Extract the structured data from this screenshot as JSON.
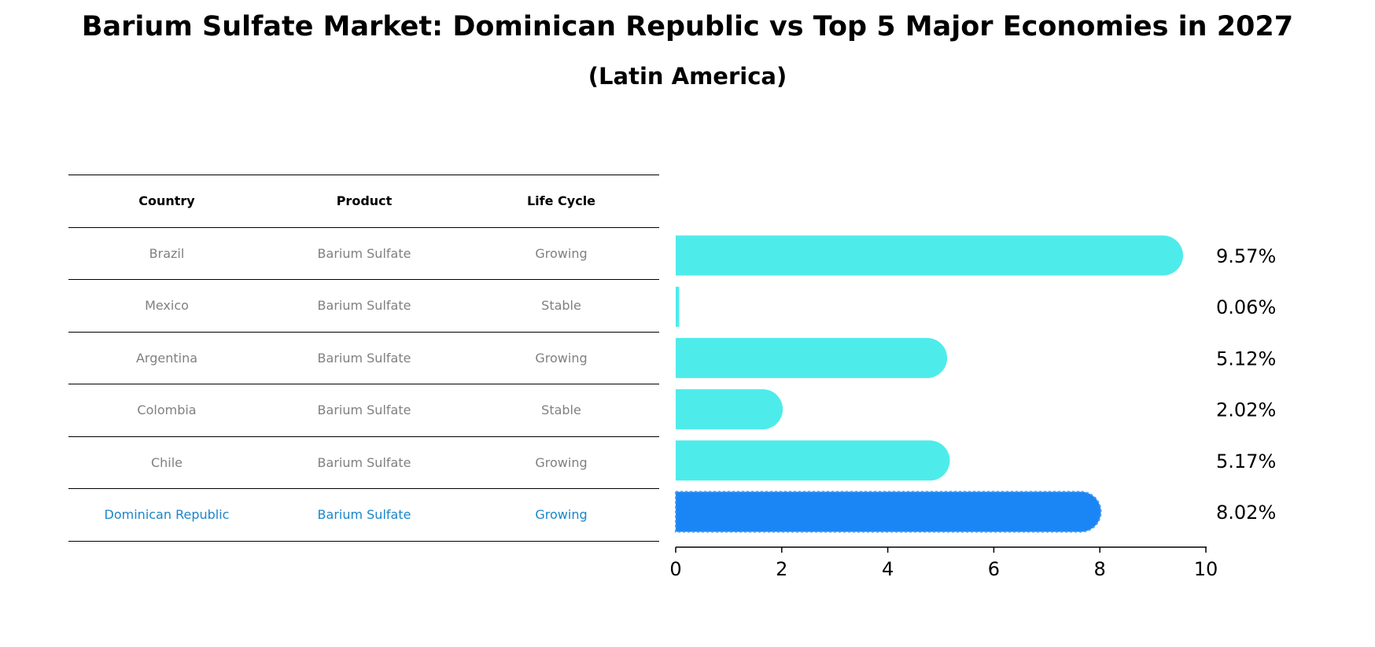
{
  "title": "Barium Sulfate Market: Dominican Republic vs Top 5 Major Economies in 2027",
  "subtitle": "(Latin America)",
  "table": {
    "headers": [
      "Country",
      "Product",
      "Life Cycle"
    ],
    "rows": [
      [
        "Brazil",
        "Barium Sulfate",
        "Growing"
      ],
      [
        "Mexico",
        "Barium Sulfate",
        "Stable"
      ],
      [
        "Argentina",
        "Barium Sulfate",
        "Growing"
      ],
      [
        "Colombia",
        "Barium Sulfate",
        "Stable"
      ],
      [
        "Chile",
        "Barium Sulfate",
        "Growing"
      ],
      [
        "Dominican Republic",
        "Barium Sulfate",
        "Growing"
      ]
    ],
    "highlight_row": 5,
    "text_color": "#808080",
    "highlight_text_color": "#1b86c9"
  },
  "chart_data": {
    "type": "bar",
    "orientation": "horizontal",
    "categories": [
      "Brazil",
      "Mexico",
      "Argentina",
      "Colombia",
      "Chile",
      "Dominican Republic"
    ],
    "values": [
      9.57,
      0.06,
      5.12,
      2.02,
      5.17,
      8.02
    ],
    "value_labels": [
      "9.57%",
      "0.06%",
      "5.12%",
      "2.02%",
      "5.17%",
      "8.02%"
    ],
    "xlim": [
      0,
      10
    ],
    "xticks": [
      0,
      2,
      4,
      6,
      8,
      10
    ],
    "bar_color": "#4deceb",
    "highlight_color": "#1a86f5",
    "highlight_index": 5,
    "grid": false,
    "xlabel": "",
    "ylabel": ""
  }
}
